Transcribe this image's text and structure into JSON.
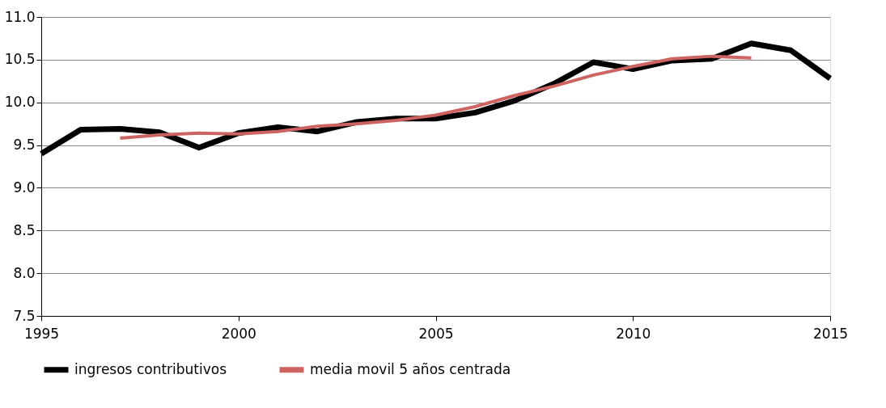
{
  "chart_data": {
    "type": "line",
    "x": [
      1995,
      1996,
      1997,
      1998,
      1999,
      2000,
      2001,
      2002,
      2003,
      2004,
      2005,
      2006,
      2007,
      2008,
      2009,
      2010,
      2011,
      2012,
      2013,
      2014,
      2015
    ],
    "series": [
      {
        "name": "ingresos contributivos",
        "color": "#000000",
        "values": [
          9.4,
          9.68,
          9.69,
          9.65,
          9.47,
          9.64,
          9.71,
          9.66,
          9.77,
          9.81,
          9.81,
          9.88,
          10.02,
          10.22,
          10.47,
          10.39,
          10.49,
          10.51,
          10.69,
          10.61,
          10.28
        ]
      },
      {
        "name": "media movil 5 años centrada",
        "color": "#cd6461",
        "values": [
          null,
          null,
          9.58,
          9.62,
          9.64,
          9.63,
          9.66,
          9.72,
          9.75,
          9.79,
          9.85,
          9.95,
          10.08,
          10.19,
          10.32,
          10.42,
          10.51,
          10.54,
          10.52,
          null,
          null
        ]
      }
    ],
    "xlim": [
      1995,
      2015
    ],
    "xticks": [
      1995,
      2000,
      2005,
      2010,
      2015
    ],
    "ylim": [
      7.5,
      11.0
    ],
    "yticks": [
      {
        "value": 7.5,
        "label": "7.5"
      },
      {
        "value": 8.0,
        "label": "8.0"
      },
      {
        "value": 8.5,
        "label": "8.5"
      },
      {
        "value": 9.0,
        "label": "9.0"
      },
      {
        "value": 9.5,
        "label": "9.5"
      },
      {
        "value": 10.0,
        "label": "10.0"
      },
      {
        "value": 10.5,
        "label": "10.5"
      },
      {
        "value": 11.0,
        "label": "11.0"
      }
    ],
    "grid": "y",
    "legend": "bottom",
    "marker": "none",
    "line_style": "solid"
  }
}
